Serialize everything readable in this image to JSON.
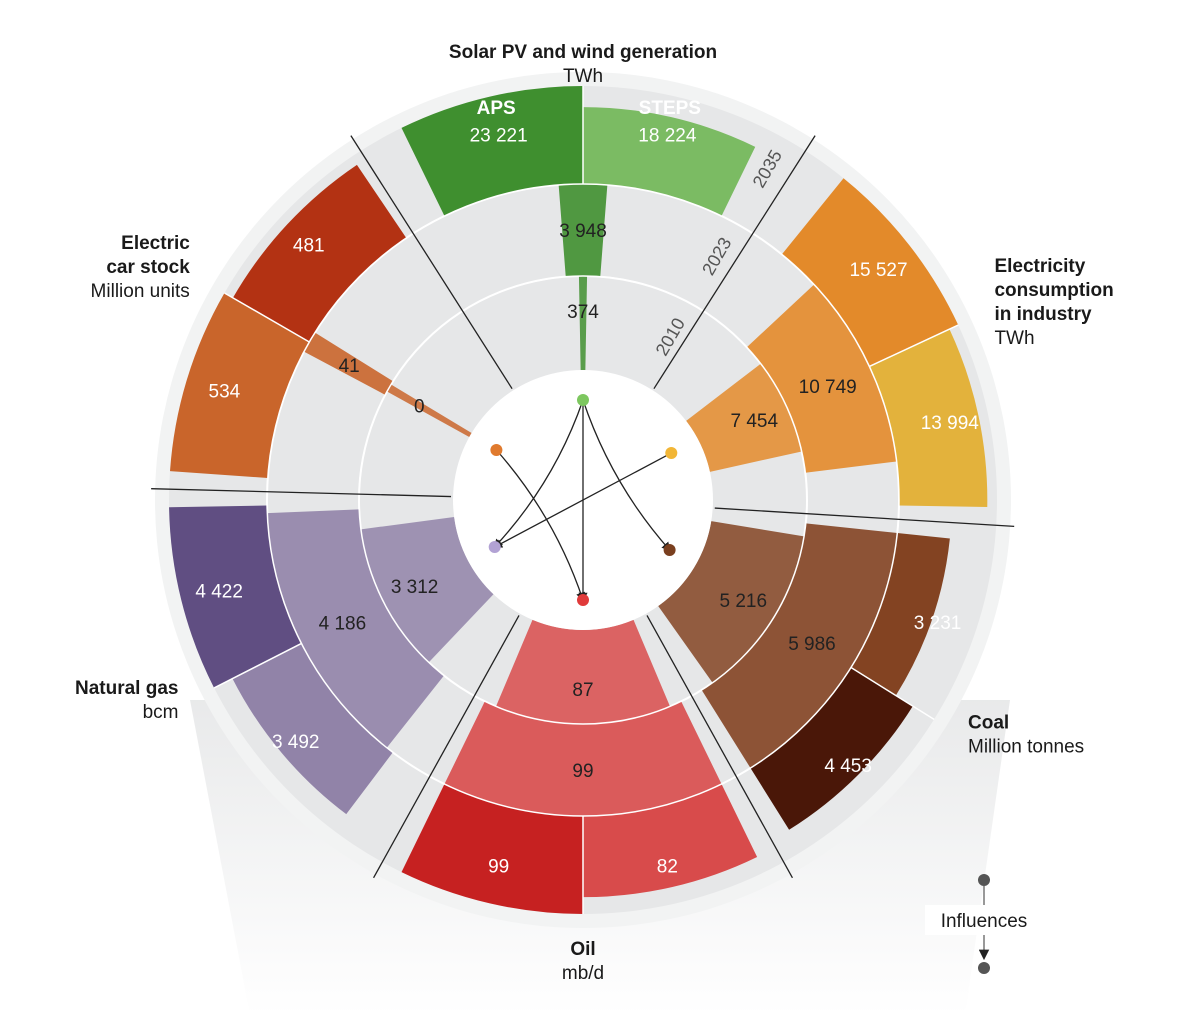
{
  "chart_data": {
    "type": "radial-bar",
    "years": [
      "2010",
      "2023",
      "2035"
    ],
    "scenario_labels": [
      "APS",
      "STEPS"
    ],
    "sectors": [
      {
        "id": "solar",
        "title_lines": [
          "Solar PV and wind generation"
        ],
        "unit": "TWh",
        "color_main": "#3f8f2f",
        "color_alt": "#7bbb63",
        "dot_color": "#7dc75f",
        "values": {
          "2010": "374",
          "2023": "3 948",
          "2035_APS": "23 221",
          "2035_STEPS": "18 224"
        }
      },
      {
        "id": "industry",
        "title_lines": [
          "Electricity",
          "consumption",
          "in industry"
        ],
        "unit": "TWh",
        "color_main": "#e38a2a",
        "color_alt": "#e3b23c",
        "dot_color": "#f2b636",
        "values": {
          "2010": "7 454",
          "2023": "10 749",
          "2035_APS": "15 527",
          "2035_STEPS": "13 994"
        }
      },
      {
        "id": "coal",
        "title_lines": [
          "Coal"
        ],
        "unit": "Million tonnes",
        "color_main": "#834322",
        "color_alt": "#4a1708",
        "dot_color": "#7a3f1f",
        "values": {
          "2010": "5 216",
          "2023": "5 986",
          "2035_APS": "3 231",
          "2035_STEPS": "4 453"
        }
      },
      {
        "id": "oil",
        "title_lines": [
          "Oil"
        ],
        "unit": "mb/d",
        "color_main": "#d84b4b",
        "color_alt": "#c62121",
        "dot_color": "#e03a3a",
        "values": {
          "2010": "87",
          "2023": "99",
          "2035_APS": "82",
          "2035_STEPS": "99"
        }
      },
      {
        "id": "gas",
        "title_lines": [
          "Natural gas"
        ],
        "unit": "bcm",
        "color_main": "#9183a8",
        "color_alt": "#604e82",
        "dot_color": "#b2a2d4",
        "values": {
          "2010": "3 312",
          "2023": "4 186",
          "2035_APS": "3 492",
          "2035_STEPS": "4 422"
        }
      },
      {
        "id": "ev",
        "title_lines": [
          "Electric",
          "car stock"
        ],
        "unit": "Million units",
        "color_main": "#c9652b",
        "color_alt": "#b33213",
        "dot_color": "#e07a2e",
        "values": {
          "2010": "0",
          "2023": "41",
          "2035_APS": "534",
          "2035_STEPS": "481"
        }
      }
    ],
    "influences": [
      {
        "from": "solar",
        "to": "gas"
      },
      {
        "from": "solar",
        "to": "oil"
      },
      {
        "from": "solar",
        "to": "coal"
      },
      {
        "from": "industry",
        "to": "gas"
      },
      {
        "from": "ev",
        "to": "oil"
      }
    ],
    "legend_label": "Influences"
  }
}
